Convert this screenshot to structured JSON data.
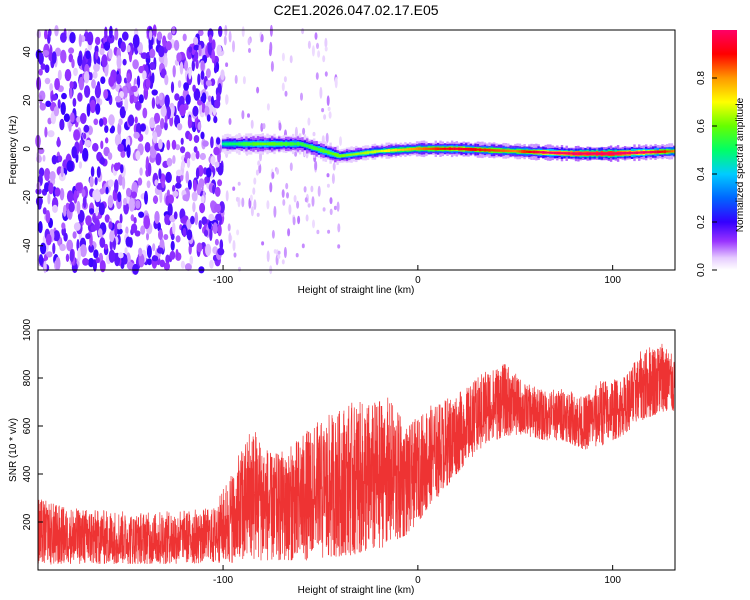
{
  "title": "C2E1.2026.047.02.17.E05",
  "chart_data": [
    {
      "type": "heatmap",
      "xlabel": "Height of straight line (km)",
      "ylabel": "Frequency (Hz)",
      "xlim": [
        -195,
        132
      ],
      "ylim": [
        -50,
        49
      ],
      "xticks": [
        -100,
        0,
        100
      ],
      "yticks": [
        -40,
        -20,
        0,
        20,
        40
      ],
      "colorbar": {
        "label": "Normalized spectral amplitude",
        "range": [
          0,
          1
        ],
        "ticks": [
          0.0,
          0.2,
          0.4,
          0.6,
          0.8
        ]
      },
      "noise_region_end_km": -100,
      "ridge": {
        "description": "Strong signal ridge near 0 Hz from about -100 km to 132 km",
        "points": [
          {
            "x": -100,
            "y": 2,
            "amp": 0.35
          },
          {
            "x": -80,
            "y": 2,
            "amp": 0.45
          },
          {
            "x": -60,
            "y": 2,
            "amp": 0.4
          },
          {
            "x": -40,
            "y": -3,
            "amp": 0.45
          },
          {
            "x": -20,
            "y": -1,
            "amp": 0.5
          },
          {
            "x": 0,
            "y": 0,
            "amp": 0.6
          },
          {
            "x": 20,
            "y": 0,
            "amp": 0.7
          },
          {
            "x": 50,
            "y": -1,
            "amp": 0.6
          },
          {
            "x": 80,
            "y": -2,
            "amp": 0.9
          },
          {
            "x": 100,
            "y": -2,
            "amp": 0.95
          },
          {
            "x": 132,
            "y": -1,
            "amp": 0.6
          }
        ]
      }
    },
    {
      "type": "line",
      "color": "#ee3333",
      "xlabel": "Height of straight line (km)",
      "ylabel": "SNR (10 * v/v)",
      "xlim": [
        -195,
        132
      ],
      "ylim": [
        0,
        1000
      ],
      "xticks": [
        -100,
        0,
        100
      ],
      "yticks": [
        200,
        400,
        600,
        800,
        1000
      ],
      "series": [
        {
          "name": "SNR",
          "x": [
            -195,
            -180,
            -160,
            -140,
            -120,
            -105,
            -95,
            -85,
            -75,
            -65,
            -55,
            -45,
            -35,
            -25,
            -15,
            -5,
            5,
            15,
            25,
            35,
            45,
            55,
            65,
            75,
            85,
            95,
            105,
            115,
            125,
            132
          ],
          "upper": [
            300,
            260,
            250,
            240,
            250,
            260,
            420,
            620,
            480,
            520,
            600,
            650,
            700,
            700,
            720,
            600,
            680,
            720,
            760,
            840,
            860,
            780,
            750,
            760,
            720,
            800,
            800,
            920,
            960,
            880
          ],
          "lower": [
            20,
            25,
            25,
            25,
            25,
            30,
            30,
            40,
            40,
            40,
            40,
            50,
            60,
            80,
            100,
            150,
            250,
            350,
            450,
            520,
            560,
            560,
            540,
            540,
            500,
            520,
            560,
            620,
            660,
            660
          ]
        }
      ]
    }
  ]
}
